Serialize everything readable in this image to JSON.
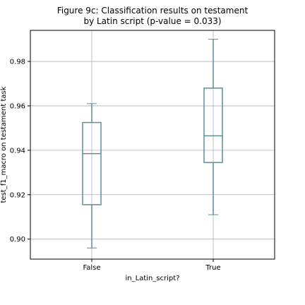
{
  "chart_data": {
    "type": "box",
    "title_line1": "Figure 9c: Classification results on testament",
    "title_line2": "by Latin script (p-value = 0.033)",
    "xlabel": "in_Latin_script?",
    "ylabel": "test_f1_macro on testament task",
    "categories": [
      "False",
      "True"
    ],
    "ylim": [
      0.891,
      0.994
    ],
    "yticks": [
      0.9,
      0.92,
      0.94,
      0.96,
      0.98
    ],
    "ytick_labels": [
      "0.90",
      "0.92",
      "0.94",
      "0.96",
      "0.98"
    ],
    "grid": true,
    "boxes": [
      {
        "category": "False",
        "whisker_low": 0.896,
        "q1": 0.9155,
        "median": 0.9385,
        "q3": 0.9525,
        "whisker_high": 0.961
      },
      {
        "category": "True",
        "whisker_low": 0.911,
        "q1": 0.9345,
        "median": 0.9465,
        "q3": 0.968,
        "whisker_high": 0.99
      }
    ],
    "box_color": "#5f8f91",
    "grid_color": "#b0b0b0"
  }
}
